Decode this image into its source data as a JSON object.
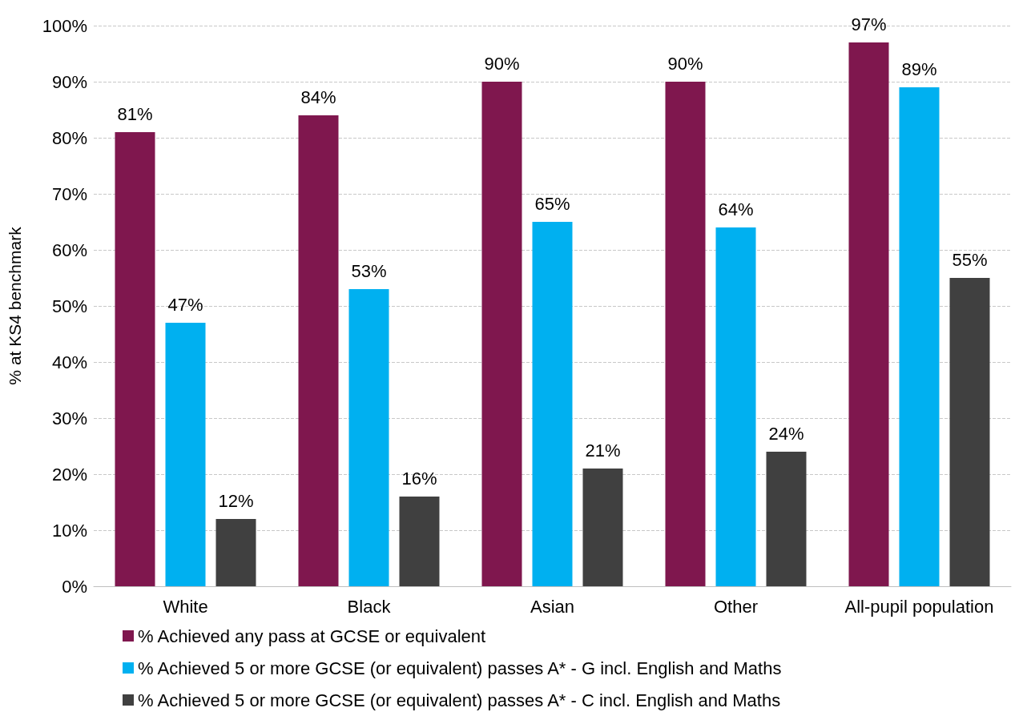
{
  "chart_data": {
    "type": "bar",
    "ylabel": "% at KS4 benchmark",
    "categories": [
      "White",
      "Black",
      "Asian",
      "Other",
      "All-pupil population"
    ],
    "series": [
      {
        "name": "% Achieved any pass at GCSE or equivalent",
        "color": "#7f174e",
        "values": [
          81,
          84,
          90,
          90,
          97
        ],
        "value_labels": [
          "81%",
          "84%",
          "90%",
          "90%",
          "97%"
        ]
      },
      {
        "name": "% Achieved 5 or more GCSE (or equivalent) passes A* - G incl. English and Maths",
        "color": "#00b0f0",
        "values": [
          47,
          53,
          65,
          64,
          89
        ],
        "value_labels": [
          "47%",
          "53%",
          "65%",
          "64%",
          "89%"
        ]
      },
      {
        "name": "% Achieved 5 or more GCSE (or equivalent) passes A* - C incl. English and Maths",
        "color": "#404040",
        "values": [
          12,
          16,
          21,
          24,
          55
        ],
        "value_labels": [
          "12%",
          "16%",
          "21%",
          "24%",
          "55%"
        ]
      }
    ],
    "ylim": [
      0,
      100
    ],
    "yticks": [
      {
        "value": 0,
        "label": "0%"
      },
      {
        "value": 10,
        "label": "10%"
      },
      {
        "value": 20,
        "label": "20%"
      },
      {
        "value": 30,
        "label": "30%"
      },
      {
        "value": 40,
        "label": "40%"
      },
      {
        "value": 50,
        "label": "50%"
      },
      {
        "value": 60,
        "label": "60%"
      },
      {
        "value": 70,
        "label": "70%"
      },
      {
        "value": 80,
        "label": "80%"
      },
      {
        "value": 90,
        "label": "90%"
      },
      {
        "value": 100,
        "label": "100%"
      }
    ],
    "grid": "y",
    "legend": "bottom"
  }
}
